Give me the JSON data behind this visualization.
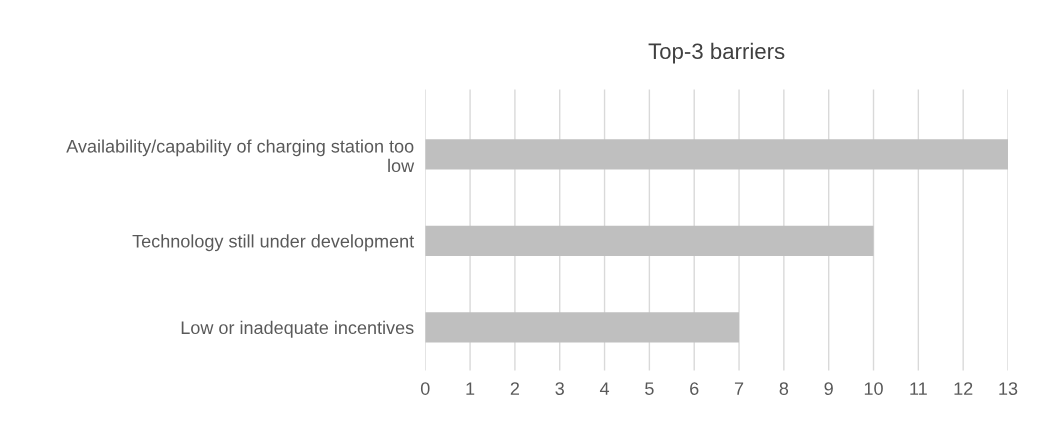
{
  "chart_data": {
    "type": "bar",
    "title": "Top-3 barriers",
    "orientation": "horizontal",
    "categories": [
      "Availability/capability of charging station too low",
      "Technology still under development",
      "Low or inadequate incentives"
    ],
    "values": [
      13,
      10,
      7
    ],
    "color": "#bfbfbf",
    "xlim": [
      0,
      13
    ],
    "xticks": [
      0,
      1,
      2,
      3,
      4,
      5,
      6,
      7,
      8,
      9,
      10,
      11,
      12,
      13
    ],
    "grid": "x"
  }
}
